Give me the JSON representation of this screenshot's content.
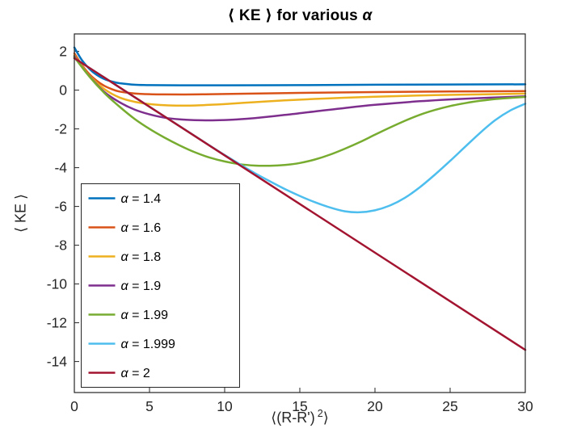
{
  "chart_data": {
    "type": "line",
    "title": "⟨ KE ⟩ for various α",
    "title_parts": {
      "prefix": "⟨ KE ⟩ for various ",
      "alpha": "α"
    },
    "xlabel": "⟨(R-R')²⟩",
    "xlabel_parts": {
      "pre": "⟨(R-R')",
      "sup": "2",
      "post": "⟩"
    },
    "ylabel": "⟨ KE ⟩",
    "xlim": [
      0,
      30
    ],
    "ylim": [
      -15.6,
      2.9
    ],
    "xticks": [
      0,
      5,
      10,
      15,
      20,
      25,
      30
    ],
    "yticks": [
      2,
      0,
      -2,
      -4,
      -6,
      -8,
      -10,
      -12,
      -14
    ],
    "grid": false,
    "axis_color": "#262626",
    "legend": {
      "position": "inside-left",
      "border_color": "#262626",
      "background": "#ffffff"
    },
    "series": [
      {
        "label": "α = 1.4",
        "alpha": "1.4",
        "color": "#0072BD",
        "x": [
          0,
          0.5,
          1,
          1.5,
          2,
          2.5,
          3,
          4,
          5,
          7,
          10,
          15,
          20,
          25,
          30
        ],
        "y": [
          2.2,
          1.55,
          1.1,
          0.78,
          0.57,
          0.44,
          0.36,
          0.28,
          0.26,
          0.25,
          0.25,
          0.26,
          0.28,
          0.29,
          0.3
        ]
      },
      {
        "label": "α = 1.6",
        "alpha": "1.6",
        "color": "#D95319",
        "x": [
          0,
          0.5,
          1,
          1.5,
          2,
          2.5,
          3,
          4,
          5,
          6,
          8,
          10,
          15,
          20,
          25,
          30
        ],
        "y": [
          1.9,
          1.3,
          0.82,
          0.48,
          0.22,
          0.05,
          -0.07,
          -0.17,
          -0.21,
          -0.22,
          -0.22,
          -0.2,
          -0.14,
          -0.1,
          -0.07,
          -0.05
        ]
      },
      {
        "label": "α = 1.8",
        "alpha": "1.8",
        "color": "#EDB120",
        "x": [
          0,
          0.5,
          1,
          2,
          3,
          4,
          5,
          6,
          7,
          8,
          9,
          10,
          12,
          14,
          17,
          20,
          24,
          27,
          30
        ],
        "y": [
          1.8,
          1.25,
          0.75,
          0.05,
          -0.38,
          -0.6,
          -0.72,
          -0.78,
          -0.8,
          -0.79,
          -0.76,
          -0.72,
          -0.62,
          -0.53,
          -0.42,
          -0.34,
          -0.26,
          -0.22,
          -0.18
        ]
      },
      {
        "label": "α = 1.9",
        "alpha": "1.9",
        "color": "#7E2F8E",
        "x": [
          0,
          0.5,
          1,
          2,
          3,
          4,
          5,
          6,
          7,
          8,
          9,
          10,
          11,
          12,
          14,
          16,
          18,
          20,
          23,
          26,
          30
        ],
        "y": [
          1.75,
          1.2,
          0.72,
          -0.1,
          -0.62,
          -1.0,
          -1.25,
          -1.42,
          -1.51,
          -1.55,
          -1.56,
          -1.54,
          -1.5,
          -1.44,
          -1.28,
          -1.1,
          -0.92,
          -0.76,
          -0.57,
          -0.44,
          -0.32
        ]
      },
      {
        "label": "α = 1.99",
        "alpha": "1.99",
        "color": "#77AC30",
        "x": [
          0,
          1,
          2,
          3,
          4,
          5,
          6,
          7,
          8,
          9,
          10,
          11,
          12,
          13,
          14,
          15,
          16,
          17,
          18,
          19,
          20,
          21,
          22,
          23,
          24,
          25,
          26,
          27,
          28,
          29,
          30
        ],
        "y": [
          1.7,
          0.7,
          -0.15,
          -0.85,
          -1.48,
          -2.0,
          -2.45,
          -2.85,
          -3.2,
          -3.48,
          -3.68,
          -3.82,
          -3.89,
          -3.9,
          -3.86,
          -3.76,
          -3.58,
          -3.33,
          -3.02,
          -2.68,
          -2.3,
          -1.93,
          -1.58,
          -1.27,
          -1.02,
          -0.82,
          -0.67,
          -0.55,
          -0.46,
          -0.4,
          -0.35
        ]
      },
      {
        "label": "α = 1.999",
        "alpha": "1.999",
        "color": "#4DBEEE",
        "x": [
          0,
          1,
          2,
          3,
          4,
          5,
          6,
          7,
          8,
          9,
          10,
          11,
          12,
          13,
          14,
          15,
          16,
          17,
          18,
          19,
          20,
          21,
          22,
          23,
          24,
          25,
          26,
          27,
          28,
          29,
          30
        ],
        "y": [
          1.65,
          1.15,
          0.65,
          0.14,
          -0.36,
          -0.86,
          -1.36,
          -1.86,
          -2.36,
          -2.86,
          -3.35,
          -3.82,
          -4.28,
          -4.7,
          -5.1,
          -5.46,
          -5.78,
          -6.05,
          -6.25,
          -6.3,
          -6.2,
          -5.95,
          -5.55,
          -5.0,
          -4.35,
          -3.65,
          -2.92,
          -2.2,
          -1.55,
          -1.05,
          -0.7
        ]
      },
      {
        "label": "α = 2",
        "alpha": "2",
        "color": "#A2142F",
        "x": [
          0,
          30
        ],
        "y": [
          1.65,
          -13.4
        ]
      }
    ]
  }
}
